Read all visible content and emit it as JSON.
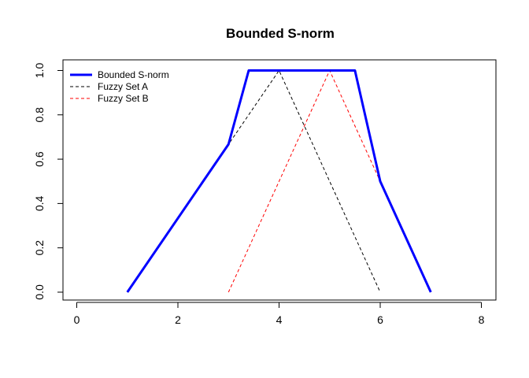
{
  "chart_data": {
    "type": "line",
    "title": "Bounded S-norm",
    "xlabel": "",
    "ylabel": "",
    "xlim": [
      0,
      8
    ],
    "ylim": [
      0,
      1
    ],
    "x_ticks": [
      0,
      2,
      4,
      6,
      8
    ],
    "y_ticks": [
      0.0,
      0.2,
      0.4,
      0.6,
      0.8,
      1.0
    ],
    "x_tick_labels": [
      "0",
      "2",
      "4",
      "6",
      "8"
    ],
    "y_tick_labels": [
      "0.0",
      "0.2",
      "0.4",
      "0.6",
      "0.8",
      "1.0"
    ],
    "grid": false,
    "legend_position": "top-left",
    "series": [
      {
        "name": "Bounded S-norm",
        "color": "#0000ff",
        "line_style": "solid",
        "x": [
          1,
          3,
          3.4,
          5.5,
          6,
          7
        ],
        "y": [
          0,
          0.667,
          1.0,
          1.0,
          0.5,
          0
        ]
      },
      {
        "name": "Fuzzy Set A",
        "color": "#000000",
        "line_style": "dashed",
        "x": [
          1,
          4,
          6
        ],
        "y": [
          0,
          1,
          0
        ]
      },
      {
        "name": "Fuzzy Set B",
        "color": "#ff0000",
        "line_style": "dashed",
        "x": [
          3,
          5,
          7
        ],
        "y": [
          0,
          1,
          0
        ]
      }
    ]
  }
}
